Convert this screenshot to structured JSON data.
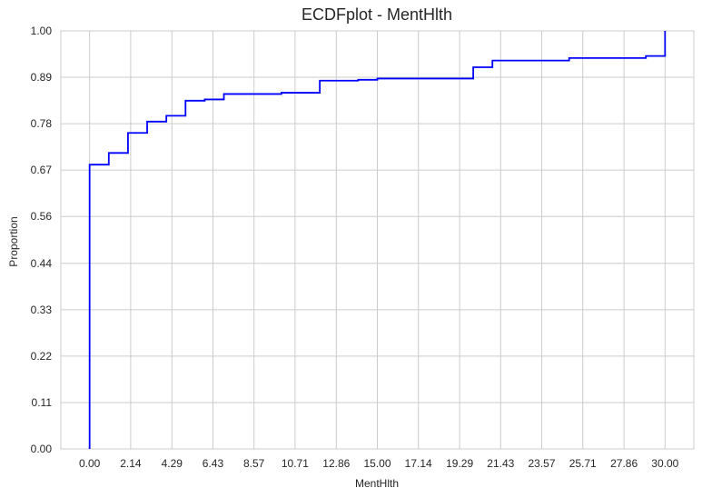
{
  "chart_data": {
    "type": "line",
    "subtype": "ecdf-step",
    "title": "ECDFplot - MentHlth",
    "xlabel": "MentHlth",
    "ylabel": "Proportion",
    "xlim": [
      -1.5,
      31.5
    ],
    "ylim": [
      0,
      1
    ],
    "x_ticks": [
      "0.00",
      "2.14",
      "4.29",
      "6.43",
      "8.57",
      "10.71",
      "12.86",
      "15.00",
      "17.14",
      "19.29",
      "21.43",
      "23.57",
      "25.71",
      "27.86",
      "30.00"
    ],
    "x_tick_values": [
      0,
      2.14,
      4.29,
      6.43,
      8.57,
      10.71,
      12.86,
      15.0,
      17.14,
      19.29,
      21.43,
      23.57,
      25.71,
      27.86,
      30.0
    ],
    "y_ticks": [
      "0.00",
      "0.11",
      "0.22",
      "0.33",
      "0.44",
      "0.56",
      "0.67",
      "0.78",
      "0.89",
      "1.00"
    ],
    "y_tick_values": [
      0,
      0.111,
      0.222,
      0.333,
      0.444,
      0.556,
      0.667,
      0.778,
      0.889,
      1.0
    ],
    "grid": true,
    "series": [
      {
        "color": "#0000ff",
        "x": [
          0,
          1,
          2,
          3,
          4,
          5,
          6,
          7,
          10,
          12,
          14,
          15,
          20,
          21,
          25,
          29,
          30
        ],
        "y": [
          0.68,
          0.708,
          0.756,
          0.783,
          0.797,
          0.833,
          0.836,
          0.849,
          0.852,
          0.881,
          0.883,
          0.886,
          0.913,
          0.929,
          0.935,
          0.94,
          1.0
        ]
      }
    ]
  }
}
